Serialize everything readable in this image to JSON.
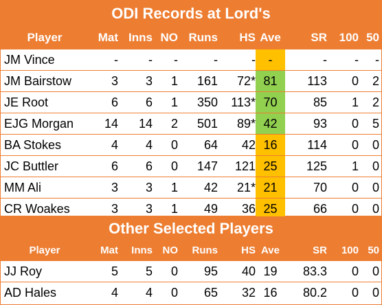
{
  "colors": {
    "accent": "#ed7d31",
    "good": "#92d050",
    "warn": "#ffc000"
  },
  "main_table": {
    "title": "ODI Records at Lord's",
    "headers": [
      "Player",
      "Mat",
      "Inns",
      "NO",
      "Runs",
      "HS",
      "Ave",
      "SR",
      "100",
      "50"
    ],
    "rows": [
      {
        "player": "JM Vince",
        "mat": "-",
        "inns": "-",
        "no": "-",
        "runs": "-",
        "hs": "-",
        "ave": "-",
        "sr": "-",
        "h100": "-",
        "h50": "-",
        "ave_color": "amber"
      },
      {
        "player": "JM Bairstow",
        "mat": "3",
        "inns": "3",
        "no": "1",
        "runs": "161",
        "hs": "72*",
        "ave": "81",
        "sr": "113",
        "h100": "0",
        "h50": "2",
        "ave_color": "green"
      },
      {
        "player": "JE Root",
        "mat": "6",
        "inns": "6",
        "no": "1",
        "runs": "350",
        "hs": "113*",
        "ave": "70",
        "sr": "85",
        "h100": "1",
        "h50": "2",
        "ave_color": "green"
      },
      {
        "player": "EJG Morgan",
        "mat": "14",
        "inns": "14",
        "no": "2",
        "runs": "501",
        "hs": "89*",
        "ave": "42",
        "sr": "93",
        "h100": "0",
        "h50": "5",
        "ave_color": "green"
      },
      {
        "player": "BA Stokes",
        "mat": "4",
        "inns": "4",
        "no": "0",
        "runs": "64",
        "hs": "42",
        "ave": "16",
        "sr": "114",
        "h100": "0",
        "h50": "0",
        "ave_color": "amber"
      },
      {
        "player": "JC Buttler",
        "mat": "6",
        "inns": "6",
        "no": "0",
        "runs": "147",
        "hs": "121",
        "ave": "25",
        "sr": "125",
        "h100": "1",
        "h50": "0",
        "ave_color": "amber"
      },
      {
        "player": "MM Ali",
        "mat": "3",
        "inns": "3",
        "no": "1",
        "runs": "42",
        "hs": "21*",
        "ave": "21",
        "sr": "70",
        "h100": "0",
        "h50": "0",
        "ave_color": "amber"
      },
      {
        "player": "CR Woakes",
        "mat": "3",
        "inns": "3",
        "no": "1",
        "runs": "49",
        "hs": "36",
        "ave": "25",
        "sr": "66",
        "h100": "0",
        "h50": "0",
        "ave_color": "amber"
      }
    ]
  },
  "other_table": {
    "title": "Other Selected Players",
    "headers": [
      "Player",
      "Mat",
      "Inns",
      "NO",
      "Runs",
      "HS",
      "Ave",
      "SR",
      "100",
      "50"
    ],
    "rows": [
      {
        "player": "JJ Roy",
        "mat": "5",
        "inns": "5",
        "no": "0",
        "runs": "95",
        "hs": "40",
        "ave": "19",
        "sr": "83.3",
        "h100": "0",
        "h50": "0"
      },
      {
        "player": "AD Hales",
        "mat": "4",
        "inns": "4",
        "no": "0",
        "runs": "65",
        "hs": "32",
        "ave": "16",
        "sr": "80.2",
        "h100": "0",
        "h50": "0"
      }
    ]
  }
}
